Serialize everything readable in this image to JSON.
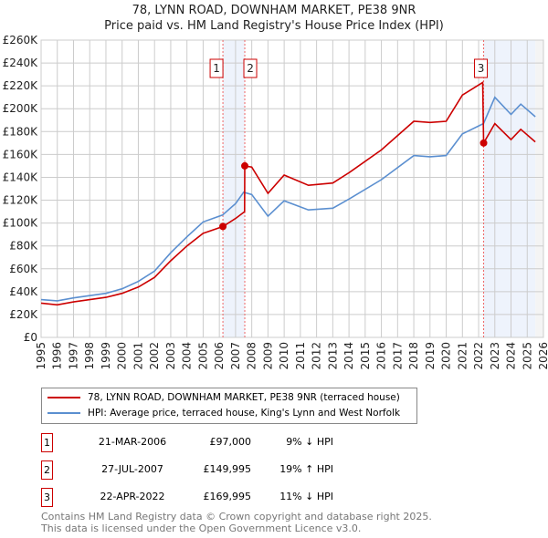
{
  "chart_data": {
    "type": "line",
    "title": "78, LYNN ROAD, DOWNHAM MARKET, PE38 9NR",
    "subtitle": "Price paid vs. HM Land Registry's House Price Index (HPI)",
    "xlim": [
      1995,
      2026
    ],
    "ylim": [
      0,
      260000
    ],
    "yticks": [
      "£0",
      "£20K",
      "£40K",
      "£60K",
      "£80K",
      "£100K",
      "£120K",
      "£140K",
      "£160K",
      "£180K",
      "£200K",
      "£220K",
      "£240K",
      "£260K"
    ],
    "xticks": [
      "1995",
      "1996",
      "1997",
      "1998",
      "1999",
      "2000",
      "2001",
      "2002",
      "2003",
      "2004",
      "2005",
      "2006",
      "2007",
      "2008",
      "2009",
      "2010",
      "2011",
      "2012",
      "2013",
      "2014",
      "2015",
      "2016",
      "2017",
      "2018",
      "2019",
      "2020",
      "2021",
      "2022",
      "2023",
      "2024",
      "2025",
      "2026"
    ],
    "grid": true,
    "series": [
      {
        "name": "78, LYNN ROAD, DOWNHAM MARKET, PE38 9NR (terraced house)",
        "color": "#cc0000",
        "x": [
          1995,
          1996,
          1997,
          1998,
          1999,
          2000,
          2001,
          2002,
          2003,
          2004,
          2005,
          2006.22,
          2006.22,
          2007.0,
          2007.56,
          2007.57,
          2008.0,
          2009.0,
          2010.0,
          2011.5,
          2013.0,
          2014.0,
          2016.0,
          2018.0,
          2019.0,
          2020.0,
          2021.0,
          2022.25,
          2022.31,
          2023.0,
          2024.0,
          2024.6,
          2025.5
        ],
        "y": [
          30000,
          28500,
          31000,
          33000,
          35000,
          38500,
          44000,
          52500,
          67000,
          80000,
          91000,
          97000,
          97000,
          104000,
          110000,
          149995,
          149000,
          126000,
          142000,
          133000,
          135000,
          144000,
          164000,
          189000,
          188000,
          189000,
          212000,
          223000,
          169995,
          187000,
          173000,
          182000,
          171000
        ]
      },
      {
        "name": "HPI: Average price, terraced house, King's Lynn and West Norfolk",
        "color": "#5b8fd0",
        "x": [
          1995,
          1996,
          1997,
          1998,
          1999,
          2000,
          2001,
          2002,
          2003,
          2004,
          2005,
          2006.2,
          2007.0,
          2007.5,
          2008.0,
          2009.0,
          2010.0,
          2011.5,
          2013.0,
          2014.0,
          2016.0,
          2018.0,
          2019.0,
          2020.0,
          2021.0,
          2022.3,
          2023.0,
          2024.0,
          2024.6,
          2025.5
        ],
        "y": [
          33000,
          32000,
          34500,
          36500,
          38500,
          42500,
          49000,
          58000,
          74000,
          88000,
          101000,
          107000,
          117000,
          127000,
          125000,
          106000,
          119500,
          111500,
          113000,
          121000,
          138000,
          159000,
          158000,
          159000,
          178000,
          187000,
          210000,
          195000,
          204000,
          193000
        ]
      }
    ],
    "sales": [
      {
        "label": "1",
        "x": 2006.22,
        "y": 97000,
        "date": "21-MAR-2006",
        "price": "£97,000",
        "hpi": "9% ↓ HPI"
      },
      {
        "label": "2",
        "x": 2007.57,
        "y": 149995,
        "date": "27-JUL-2007",
        "price": "£149,995",
        "hpi": "19% ↑ HPI"
      },
      {
        "label": "3",
        "x": 2022.31,
        "y": 169995,
        "date": "22-APR-2022",
        "price": "£169,995",
        "hpi": "11% ↓ HPI"
      }
    ]
  },
  "footer": {
    "line1": "Contains HM Land Registry data © Crown copyright and database right 2025.",
    "line2": "This data is licensed under the Open Government Licence v3.0."
  }
}
